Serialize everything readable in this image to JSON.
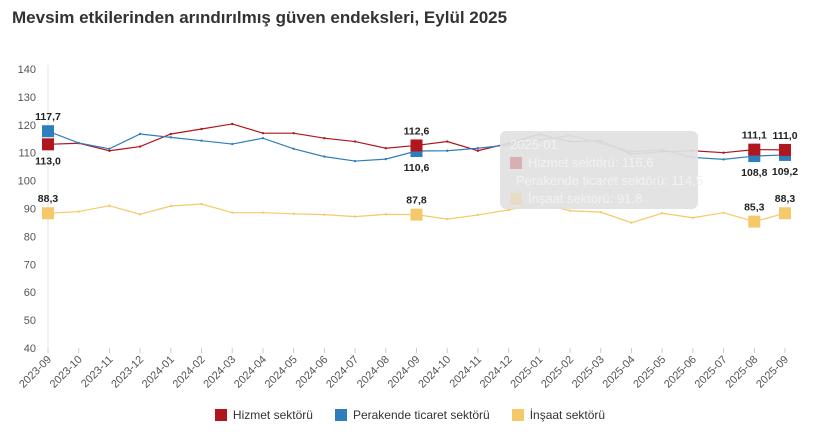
{
  "title": "Mevsim etkilerinden arındırılmış güven endeksleri, Eylül 2025",
  "chart_data": {
    "type": "line",
    "title": "Mevsim etkilerinden arındırılmış güven endeksleri, Eylül 2025",
    "ylim": [
      40,
      140
    ],
    "yticks": [
      "40",
      "50",
      "60",
      "70",
      "80",
      "90",
      "100",
      "110",
      "120",
      "130",
      "140"
    ],
    "grid": false,
    "legend": "bottom",
    "categories": [
      "2023-09",
      "2023-10",
      "2023-11",
      "2023-12",
      "2024-01",
      "2024-02",
      "2024-03",
      "2024-04",
      "2024-05",
      "2024-06",
      "2024-07",
      "2024-08",
      "2024-09",
      "2024-10",
      "2024-11",
      "2024-12",
      "2025-01",
      "2025-02",
      "2025-03",
      "2025-04",
      "2025-05",
      "2025-06",
      "2025-07",
      "2025-08",
      "2025-09"
    ],
    "series": [
      {
        "name": "Hizmet sektörü",
        "color": "#b0161e",
        "values": [
          113.0,
          113.4,
          110.7,
          112.2,
          116.7,
          118.5,
          120.3,
          117.0,
          117.0,
          115.2,
          114.0,
          111.6,
          112.6,
          114.0,
          110.7,
          113.4,
          116.6,
          114.0,
          114.3,
          109.5,
          110.4,
          110.7,
          110.0,
          111.1,
          111.0
        ]
      },
      {
        "name": "Perakende ticaret sektörü",
        "color": "#2f7ebc",
        "values": [
          117.7,
          113.5,
          111.4,
          116.7,
          115.5,
          114.3,
          113.1,
          115.2,
          111.4,
          108.6,
          107.0,
          107.7,
          110.6,
          110.7,
          111.6,
          112.8,
          114.5,
          116.2,
          113.4,
          110.4,
          111.0,
          108.3,
          107.6,
          108.8,
          109.2
        ]
      },
      {
        "name": "İnşaat sektörü",
        "color": "#f5c96a",
        "values": [
          88.3,
          88.9,
          91.0,
          87.9,
          90.9,
          91.6,
          88.5,
          88.5,
          88.1,
          87.8,
          87.1,
          87.9,
          87.8,
          86.2,
          87.7,
          89.5,
          91.8,
          89.2,
          88.7,
          84.9,
          88.3,
          86.7,
          88.5,
          85.3,
          88.3
        ]
      }
    ],
    "labeled_points": [
      {
        "series": 0,
        "index": 0,
        "label": "113,0",
        "pos": "below"
      },
      {
        "series": 1,
        "index": 0,
        "label": "117,7",
        "pos": "above"
      },
      {
        "series": 2,
        "index": 0,
        "label": "88,3",
        "pos": "above"
      },
      {
        "series": 0,
        "index": 12,
        "label": "112,6",
        "pos": "above"
      },
      {
        "series": 1,
        "index": 12,
        "label": "110,6",
        "pos": "below"
      },
      {
        "series": 2,
        "index": 12,
        "label": "87,8",
        "pos": "above"
      },
      {
        "series": 0,
        "index": 23,
        "label": "111,1",
        "pos": "above"
      },
      {
        "series": 1,
        "index": 23,
        "label": "108,8",
        "pos": "below"
      },
      {
        "series": 2,
        "index": 23,
        "label": "85,3",
        "pos": "above"
      },
      {
        "series": 0,
        "index": 24,
        "label": "111,0",
        "pos": "above"
      },
      {
        "series": 1,
        "index": 24,
        "label": "109,2",
        "pos": "below"
      },
      {
        "series": 2,
        "index": 24,
        "label": "88,3",
        "pos": "above"
      }
    ]
  },
  "tooltip": {
    "title": "2025-01",
    "rows": [
      "Hizmet sektörü: 116,6",
      "Perakende ticaret sektörü: 114,5",
      "İnşaat sektörü: 91,8"
    ]
  }
}
